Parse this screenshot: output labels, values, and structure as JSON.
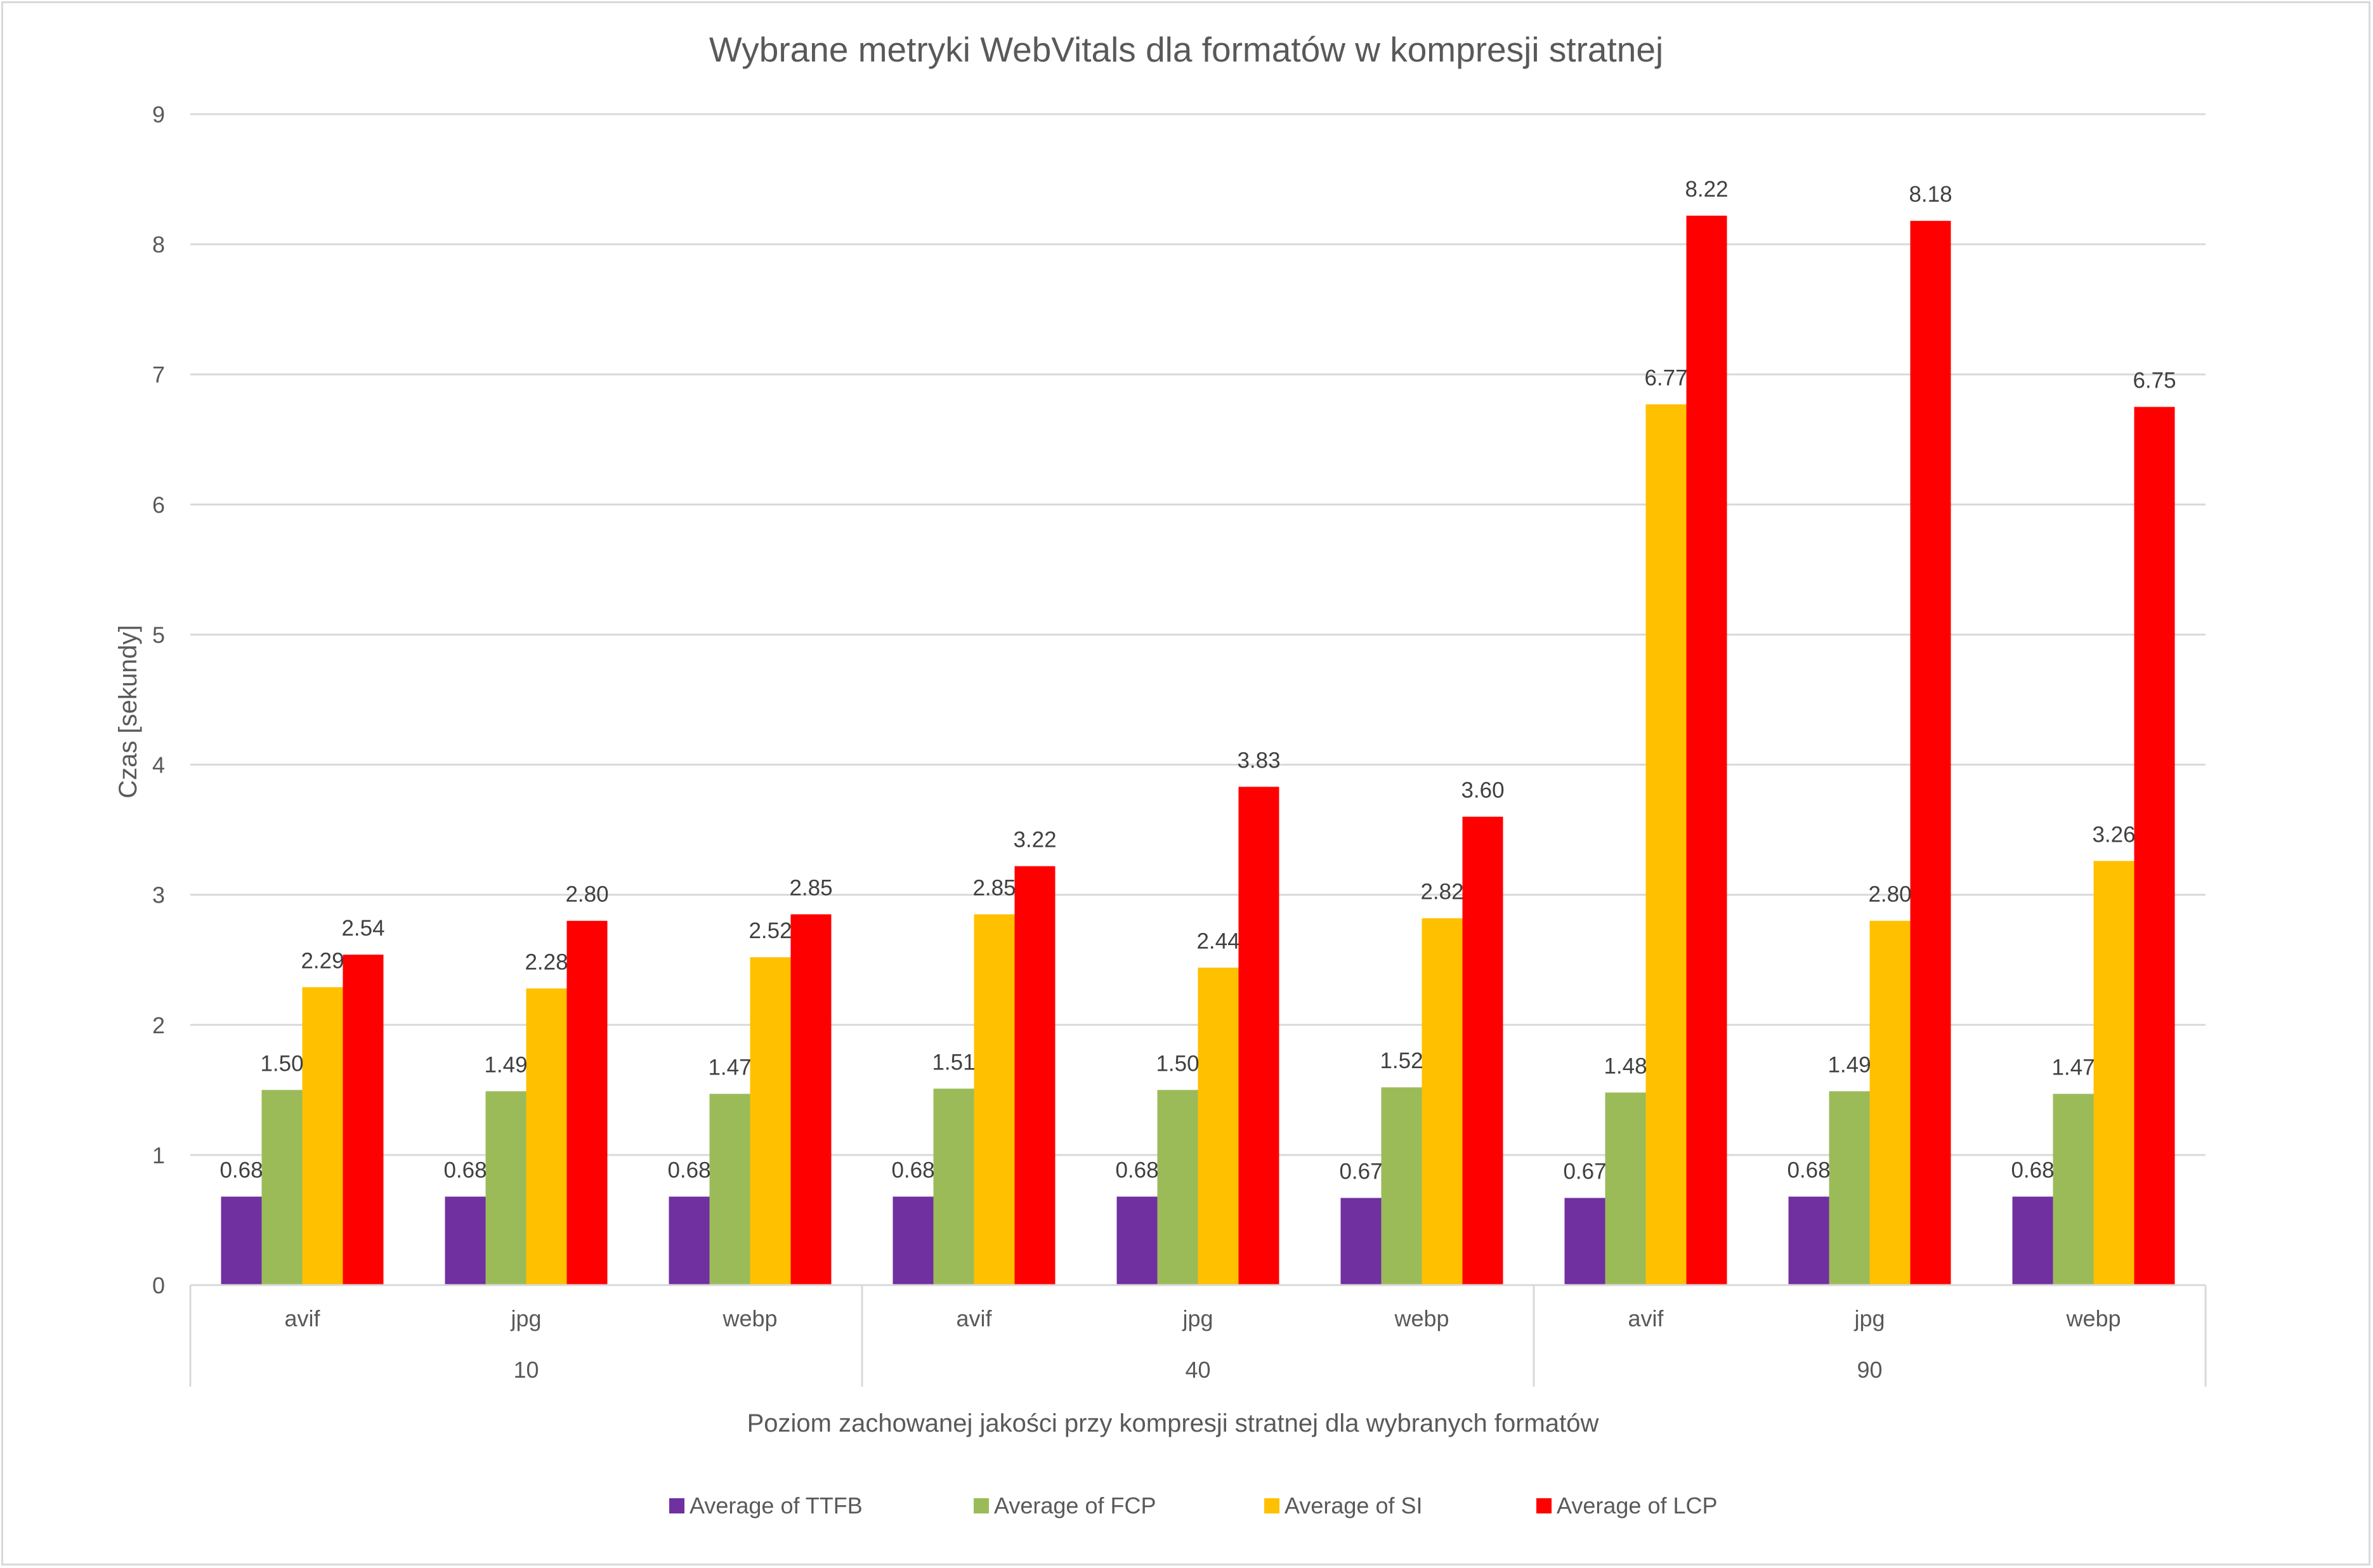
{
  "chart_data": {
    "type": "bar",
    "title": "Wybrane metryki WebVitals dla formatów w kompresji stratnej",
    "xlabel": "Poziom zachowanej jakości przy kompresji stratnej dla wybranych formatów",
    "ylabel": "Czas [sekundy]",
    "ylim": [
      0,
      9
    ],
    "yticks": [
      "0",
      "1",
      "2",
      "3",
      "4",
      "5",
      "6",
      "7",
      "8",
      "9"
    ],
    "grid": true,
    "legend_position": "bottom",
    "groups": [
      {
        "label": "10",
        "categories": [
          "avif",
          "jpg",
          "webp"
        ]
      },
      {
        "label": "40",
        "categories": [
          "avif",
          "jpg",
          "webp"
        ]
      },
      {
        "label": "90",
        "categories": [
          "avif",
          "jpg",
          "webp"
        ]
      }
    ],
    "series": [
      {
        "name": "Average of TTFB",
        "color": "#7030a0",
        "values": [
          0.68,
          0.68,
          0.68,
          0.68,
          0.68,
          0.67,
          0.67,
          0.68,
          0.68
        ],
        "labels": [
          "0.68",
          "0.68",
          "0.68",
          "0.68",
          "0.68",
          "0.67",
          "0.67",
          "0.68",
          "0.68"
        ]
      },
      {
        "name": "Average of FCP",
        "color": "#9bbb59",
        "values": [
          1.5,
          1.49,
          1.47,
          1.51,
          1.5,
          1.52,
          1.48,
          1.49,
          1.47
        ],
        "labels": [
          "1.50",
          "1.49",
          "1.47",
          "1.51",
          "1.50",
          "1.52",
          "1.48",
          "1.49",
          "1.47"
        ]
      },
      {
        "name": "Average of SI",
        "color": "#ffc000",
        "values": [
          2.29,
          2.28,
          2.52,
          2.85,
          2.44,
          2.82,
          6.77,
          2.8,
          3.26
        ],
        "labels": [
          "2.29",
          "2.28",
          "2.52",
          "2.85",
          "2.44",
          "2.82",
          "6.77",
          "2.80",
          "3.26"
        ]
      },
      {
        "name": "Average of LCP",
        "color": "#ff0000",
        "values": [
          2.54,
          2.8,
          2.85,
          3.22,
          3.83,
          3.6,
          8.22,
          8.18,
          6.75
        ],
        "labels": [
          "2.54",
          "2.80",
          "2.85",
          "3.22",
          "3.83",
          "3.60",
          "8.22",
          "8.18",
          "6.75"
        ]
      }
    ]
  }
}
